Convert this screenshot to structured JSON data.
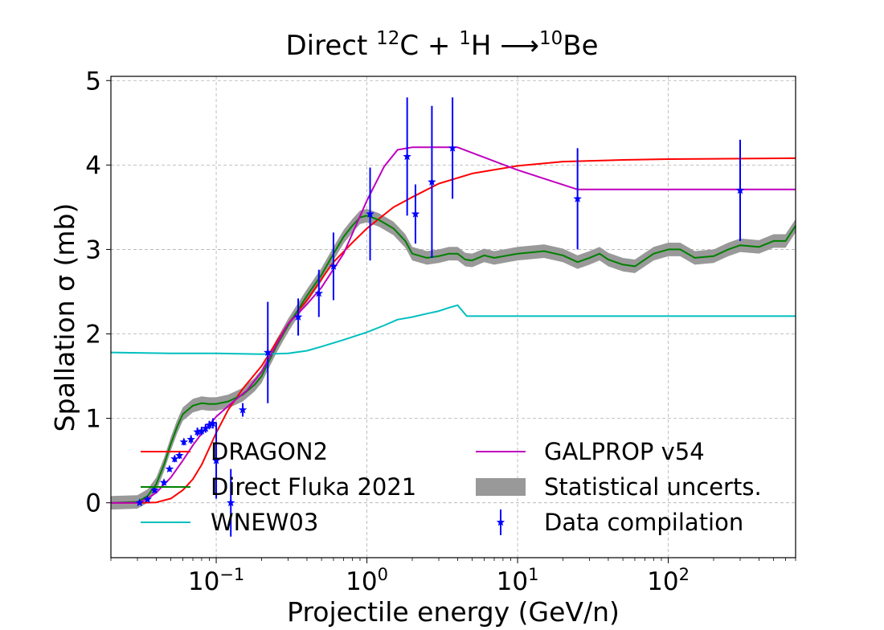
{
  "chart_data": {
    "type": "line",
    "title": "Direct $^{12}$C + $^1$H $\\longrightarrow$$^{10}$Be",
    "title_parts": {
      "prefix": "Direct ",
      "sup1": "12",
      "mid1": "C + ",
      "sup2": "1",
      "mid2": "H ",
      "arrow": "⟶",
      "sup3": "10",
      "suffix": "Be"
    },
    "xlabel": "Projectile energy (GeV/n)",
    "ylabel": "Spallation σ (mb)",
    "x_scale": "log",
    "xlim": [
      0.02,
      700
    ],
    "ylim": [
      -0.65,
      5.05
    ],
    "xticks": [
      {
        "value": 0.1,
        "base": "10",
        "exp": "−1"
      },
      {
        "value": 1,
        "base": "10",
        "exp": "0"
      },
      {
        "value": 10,
        "base": "10",
        "exp": "1"
      },
      {
        "value": 100,
        "base": "10",
        "exp": "2"
      }
    ],
    "yticks": [
      0,
      1,
      2,
      3,
      4,
      5
    ],
    "grid": true,
    "legend_position": "lower-left",
    "series": [
      {
        "name": "DRAGON2",
        "color": "#ff0000",
        "points": [
          [
            0.02,
            0
          ],
          [
            0.03,
            0
          ],
          [
            0.04,
            0.005
          ],
          [
            0.05,
            0.05
          ],
          [
            0.06,
            0.15
          ],
          [
            0.07,
            0.28
          ],
          [
            0.08,
            0.45
          ],
          [
            0.09,
            0.65
          ],
          [
            0.1,
            0.83
          ],
          [
            0.12,
            1.1
          ],
          [
            0.15,
            1.35
          ],
          [
            0.2,
            1.62
          ],
          [
            0.25,
            1.9
          ],
          [
            0.3,
            2.12
          ],
          [
            0.4,
            2.4
          ],
          [
            0.5,
            2.65
          ],
          [
            0.6,
            2.85
          ],
          [
            0.8,
            3.08
          ],
          [
            1,
            3.25
          ],
          [
            1.5,
            3.5
          ],
          [
            2,
            3.62
          ],
          [
            3,
            3.78
          ],
          [
            5,
            3.9
          ],
          [
            10,
            3.99
          ],
          [
            20,
            4.04
          ],
          [
            50,
            4.06
          ],
          [
            100,
            4.07
          ],
          [
            700,
            4.08
          ]
        ]
      },
      {
        "name": "Direct Fluka 2021",
        "color": "#008000",
        "points": [
          [
            0.02,
            0
          ],
          [
            0.03,
            0.01
          ],
          [
            0.035,
            0.08
          ],
          [
            0.04,
            0.22
          ],
          [
            0.045,
            0.45
          ],
          [
            0.05,
            0.7
          ],
          [
            0.055,
            0.9
          ],
          [
            0.06,
            1.05
          ],
          [
            0.07,
            1.15
          ],
          [
            0.08,
            1.18
          ],
          [
            0.09,
            1.17
          ],
          [
            0.1,
            1.17
          ],
          [
            0.12,
            1.2
          ],
          [
            0.15,
            1.28
          ],
          [
            0.18,
            1.4
          ],
          [
            0.2,
            1.5
          ],
          [
            0.25,
            1.85
          ],
          [
            0.3,
            2.1
          ],
          [
            0.4,
            2.45
          ],
          [
            0.5,
            2.7
          ],
          [
            0.6,
            2.95
          ],
          [
            0.7,
            3.15
          ],
          [
            0.8,
            3.28
          ],
          [
            0.9,
            3.38
          ],
          [
            1,
            3.4
          ],
          [
            1.2,
            3.35
          ],
          [
            1.5,
            3.25
          ],
          [
            1.8,
            3.1
          ],
          [
            2,
            2.95
          ],
          [
            2.5,
            2.9
          ],
          [
            3,
            2.92
          ],
          [
            3.5,
            2.95
          ],
          [
            4,
            2.95
          ],
          [
            4.5,
            2.88
          ],
          [
            5,
            2.87
          ],
          [
            6,
            2.93
          ],
          [
            7,
            2.9
          ],
          [
            10,
            2.95
          ],
          [
            15,
            2.98
          ],
          [
            20,
            2.93
          ],
          [
            25,
            2.85
          ],
          [
            30,
            2.9
          ],
          [
            35,
            2.95
          ],
          [
            40,
            2.88
          ],
          [
            50,
            2.82
          ],
          [
            60,
            2.8
          ],
          [
            80,
            2.95
          ],
          [
            100,
            3.0
          ],
          [
            120,
            3.0
          ],
          [
            150,
            2.9
          ],
          [
            200,
            2.92
          ],
          [
            250,
            3.0
          ],
          [
            300,
            3.05
          ],
          [
            400,
            3.03
          ],
          [
            500,
            3.1
          ],
          [
            600,
            3.1
          ],
          [
            700,
            3.28
          ]
        ]
      },
      {
        "name": "WNEW03",
        "color": "#00bfbf",
        "points": [
          [
            0.02,
            1.78
          ],
          [
            0.05,
            1.77
          ],
          [
            0.1,
            1.77
          ],
          [
            0.2,
            1.76
          ],
          [
            0.3,
            1.77
          ],
          [
            0.4,
            1.8
          ],
          [
            0.5,
            1.85
          ],
          [
            0.7,
            1.93
          ],
          [
            1,
            2.02
          ],
          [
            1.3,
            2.1
          ],
          [
            1.6,
            2.17
          ],
          [
            2,
            2.2
          ],
          [
            2.5,
            2.24
          ],
          [
            3,
            2.27
          ],
          [
            3.5,
            2.31
          ],
          [
            4,
            2.34
          ],
          [
            4.6,
            2.21
          ],
          [
            10,
            2.21
          ],
          [
            100,
            2.21
          ],
          [
            700,
            2.21
          ]
        ]
      },
      {
        "name": "GALPROP v54",
        "color": "#bf00bf",
        "points": [
          [
            0.02,
            0
          ],
          [
            0.03,
            0
          ],
          [
            0.035,
            0.05
          ],
          [
            0.04,
            0.12
          ],
          [
            0.05,
            0.3
          ],
          [
            0.06,
            0.5
          ],
          [
            0.07,
            0.68
          ],
          [
            0.08,
            0.82
          ],
          [
            0.1,
            1.02
          ],
          [
            0.13,
            1.2
          ],
          [
            0.16,
            1.33
          ],
          [
            0.2,
            1.55
          ],
          [
            0.25,
            1.87
          ],
          [
            0.3,
            2.12
          ],
          [
            0.4,
            2.35
          ],
          [
            0.5,
            2.55
          ],
          [
            0.7,
            2.95
          ],
          [
            1,
            3.58
          ],
          [
            1.3,
            3.98
          ],
          [
            1.6,
            4.18
          ],
          [
            2,
            4.21
          ],
          [
            3,
            4.21
          ],
          [
            4,
            4.21
          ],
          [
            10,
            3.94
          ],
          [
            25,
            3.71
          ],
          [
            100,
            3.71
          ],
          [
            700,
            3.71
          ]
        ]
      }
    ],
    "band": {
      "name": "Statistical uncerts.",
      "color": "#999999",
      "half_width": 0.08,
      "of_series": "Direct Fluka 2021"
    },
    "data_points": {
      "name": "Data compilation",
      "color": "#0000ff",
      "points": [
        {
          "x": 0.031,
          "y": 0.0,
          "err": 0.02
        },
        {
          "x": 0.035,
          "y": 0.04,
          "err": 0.02
        },
        {
          "x": 0.039,
          "y": 0.15,
          "err": 0.03
        },
        {
          "x": 0.045,
          "y": 0.24,
          "err": 0.03
        },
        {
          "x": 0.049,
          "y": 0.4,
          "err": 0.03
        },
        {
          "x": 0.053,
          "y": 0.52,
          "err": 0.04
        },
        {
          "x": 0.057,
          "y": 0.56,
          "err": 0.04
        },
        {
          "x": 0.061,
          "y": 0.72,
          "err": 0.04
        },
        {
          "x": 0.068,
          "y": 0.75,
          "err": 0.05
        },
        {
          "x": 0.075,
          "y": 0.84,
          "err": 0.05
        },
        {
          "x": 0.08,
          "y": 0.85,
          "err": 0.05
        },
        {
          "x": 0.085,
          "y": 0.88,
          "err": 0.05
        },
        {
          "x": 0.09,
          "y": 0.92,
          "err": 0.05
        },
        {
          "x": 0.095,
          "y": 0.94,
          "err": 0.06
        },
        {
          "x": 0.1,
          "y": 0.5,
          "err": 0.45
        },
        {
          "x": 0.125,
          "y": 0.0,
          "err": 0.4
        },
        {
          "x": 0.15,
          "y": 1.1,
          "err": 0.08
        },
        {
          "x": 0.22,
          "y": 1.78,
          "err": 0.6
        },
        {
          "x": 0.35,
          "y": 2.2,
          "err": 0.22
        },
        {
          "x": 0.48,
          "y": 2.48,
          "err": 0.28
        },
        {
          "x": 0.6,
          "y": 2.8,
          "err": 0.4
        },
        {
          "x": 1.05,
          "y": 3.42,
          "err": 0.55
        },
        {
          "x": 1.85,
          "y": 4.1,
          "err": 0.7
        },
        {
          "x": 2.1,
          "y": 3.42,
          "err": 0.35
        },
        {
          "x": 2.7,
          "y": 3.8,
          "err": 0.9
        },
        {
          "x": 3.7,
          "y": 4.2,
          "err": 0.6
        },
        {
          "x": 25,
          "y": 3.6,
          "err": 0.6
        },
        {
          "x": 300,
          "y": 3.7,
          "err": 0.6
        }
      ]
    },
    "legend": [
      {
        "label": "DRAGON2",
        "kind": "line",
        "color": "#ff0000"
      },
      {
        "label": "Direct Fluka 2021",
        "kind": "line",
        "color": "#008000"
      },
      {
        "label": "WNEW03",
        "kind": "line",
        "color": "#00bfbf"
      },
      {
        "label": "GALPROP v54",
        "kind": "line",
        "color": "#bf00bf"
      },
      {
        "label": "Statistical uncerts.",
        "kind": "band",
        "color": "#999999"
      },
      {
        "label": "Data compilation",
        "kind": "errorbar",
        "color": "#0000ff"
      }
    ]
  }
}
